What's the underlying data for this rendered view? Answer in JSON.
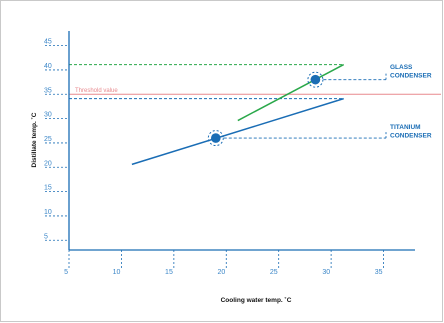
{
  "chart_data": {
    "type": "line",
    "xlabel": "Cooling water temp. ˚C",
    "ylabel": "Distillate temp. ˚C",
    "xlim": [
      5,
      38
    ],
    "ylim": [
      3,
      48
    ],
    "x_ticks": [
      "5",
      "10",
      "15",
      "20",
      "25",
      "30",
      "35"
    ],
    "y_ticks": [
      "5",
      "10",
      "15",
      "20",
      "25",
      "30",
      "35",
      "40",
      "45"
    ],
    "grid": false,
    "series": [
      {
        "name": "TITANIUM CONDENSER",
        "color": "#1a6db5",
        "x": [
          11,
          31.2
        ],
        "y": [
          20.6,
          34.1
        ]
      },
      {
        "name": "GLASS CONDENSER",
        "color": "#2aa84a",
        "x": [
          21.1,
          31.2
        ],
        "y": [
          29.6,
          41.1
        ]
      }
    ],
    "threshold": {
      "label": "Threshold value",
      "y": 35,
      "color": "#e8898e"
    },
    "highlight_points": [
      {
        "series": "TITANIUM CONDENSER",
        "x": 19,
        "y": 26
      },
      {
        "series": "GLASS CONDENSER",
        "x": 28.5,
        "y": 38
      }
    ],
    "reference_lines": [
      {
        "y": 41.1,
        "color": "#2aa84a"
      },
      {
        "y": 34.1,
        "color": "#1a6db5"
      }
    ]
  }
}
